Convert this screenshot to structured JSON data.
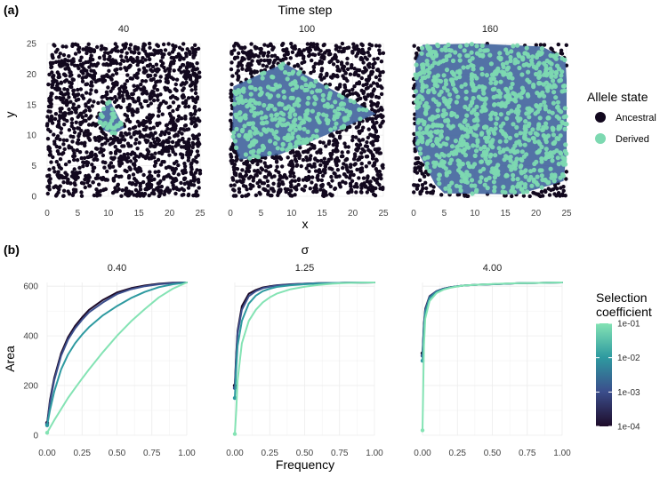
{
  "figure": {
    "panel_a_tag": "(a)",
    "panel_a_strip_title": "Time step",
    "panel_b_tag": "(b)",
    "panel_b_strip_title": "σ"
  },
  "chart_data": [
    {
      "type": "scatter",
      "panel": "(a)",
      "facet_title": "Time step",
      "facets": [
        "40",
        "100",
        "160"
      ],
      "xlabel": "x",
      "ylabel": "y",
      "xlim": [
        0,
        25
      ],
      "ylim": [
        0,
        25
      ],
      "xticks": [
        "0",
        "5",
        "10",
        "15",
        "20",
        "25"
      ],
      "yticks": [
        "0",
        "5",
        "10",
        "15",
        "20",
        "25"
      ],
      "legend": {
        "title": "Allele state",
        "entries": [
          {
            "label": "Ancestral",
            "color": "#12081e"
          },
          {
            "label": "Derived",
            "color": "#7dd9b1"
          }
        ],
        "placement": "right"
      },
      "hull_color": "#3b5f9a",
      "derived_hulls": [
        [
          [
            8.2,
            12.8
          ],
          [
            10.2,
            15.8
          ],
          [
            12.6,
            11.2
          ],
          [
            11.0,
            10.2
          ],
          [
            9.2,
            10.8
          ]
        ],
        [
          [
            0.5,
            18.0
          ],
          [
            8.8,
            21.8
          ],
          [
            23.8,
            13.5
          ],
          [
            8.0,
            6.8
          ],
          [
            1.5,
            6.0
          ],
          [
            0.3,
            9.5
          ]
        ],
        [
          [
            0.3,
            22.0
          ],
          [
            1.5,
            24.8
          ],
          [
            10.0,
            25.0
          ],
          [
            21.0,
            24.5
          ],
          [
            24.8,
            22.5
          ],
          [
            25.0,
            19.0
          ],
          [
            25.0,
            7.0
          ],
          [
            24.5,
            2.5
          ],
          [
            23.0,
            2.0
          ],
          [
            17.0,
            0.3
          ],
          [
            5.0,
            0.5
          ],
          [
            3.5,
            2.0
          ],
          [
            0.3,
            8.0
          ]
        ]
      ],
      "grid": true
    },
    {
      "type": "line",
      "panel": "(b)",
      "facet_title": "σ",
      "facets": [
        "0.40",
        "1.25",
        "4.00"
      ],
      "xlabel": "Frequency",
      "ylabel": "Area",
      "xlim": [
        0,
        1
      ],
      "ylim": [
        0,
        615
      ],
      "xticks": [
        "0.00",
        "0.25",
        "0.50",
        "0.75",
        "1.00"
      ],
      "yticks": [
        "0",
        "200",
        "400",
        "600"
      ],
      "legend": {
        "title": "Selection coefficient",
        "type": "colorbar",
        "labels": [
          "1e-01",
          "1e-02",
          "1e-03",
          "1e-04"
        ],
        "colors": [
          "#84e3b4",
          "#2e9aa0",
          "#3b4e8c",
          "#1e0c2a"
        ],
        "placement": "right"
      },
      "x": [
        0,
        0.01,
        0.02,
        0.05,
        0.1,
        0.15,
        0.2,
        0.25,
        0.3,
        0.4,
        0.5,
        0.6,
        0.7,
        0.8,
        0.9,
        1.0
      ],
      "panels": [
        {
          "facet": "0.40",
          "series": [
            {
              "s": "1e-04",
              "color": "#1e0c2a",
              "values": [
                50,
                95,
                140,
                230,
                330,
                395,
                440,
                475,
                505,
                545,
                575,
                592,
                603,
                610,
                614,
                615
              ]
            },
            {
              "s": "1e-03",
              "color": "#3b4e8c",
              "values": [
                45,
                88,
                130,
                220,
                320,
                385,
                430,
                465,
                495,
                535,
                568,
                588,
                600,
                608,
                613,
                615
              ]
            },
            {
              "s": "1e-02",
              "color": "#2e9aa0",
              "values": [
                40,
                70,
                100,
                175,
                265,
                325,
                370,
                405,
                435,
                483,
                520,
                552,
                577,
                596,
                608,
                615
              ]
            },
            {
              "s": "1e-01",
              "color": "#84e3b4",
              "values": [
                10,
                20,
                30,
                60,
                105,
                150,
                190,
                228,
                265,
                335,
                400,
                458,
                508,
                555,
                590,
                615
              ]
            }
          ]
        },
        {
          "facet": "1.25",
          "series": [
            {
              "s": "1e-04",
              "color": "#1e0c2a",
              "values": [
                200,
                330,
                420,
                520,
                570,
                585,
                595,
                600,
                604,
                608,
                610,
                612,
                613,
                614,
                614,
                615
              ]
            },
            {
              "s": "1e-03",
              "color": "#3b4e8c",
              "values": [
                190,
                320,
                410,
                505,
                560,
                580,
                592,
                598,
                603,
                607,
                610,
                612,
                613,
                614,
                614,
                615
              ]
            },
            {
              "s": "1e-02",
              "color": "#2e9aa0",
              "values": [
                150,
                270,
                360,
                460,
                530,
                562,
                580,
                590,
                597,
                604,
                608,
                611,
                613,
                614,
                615,
                615
              ]
            },
            {
              "s": "1e-01",
              "color": "#84e3b4",
              "values": [
                5,
                100,
                220,
                370,
                460,
                505,
                535,
                555,
                570,
                588,
                598,
                605,
                610,
                613,
                614,
                615
              ]
            }
          ]
        },
        {
          "facet": "4.00",
          "series": [
            {
              "s": "1e-04",
              "color": "#1e0c2a",
              "values": [
                330,
                450,
                510,
                560,
                580,
                590,
                596,
                600,
                603,
                606,
                608,
                610,
                612,
                613,
                614,
                615
              ]
            },
            {
              "s": "1e-03",
              "color": "#3b4e8c",
              "values": [
                320,
                445,
                505,
                558,
                580,
                590,
                596,
                600,
                603,
                606,
                608,
                610,
                612,
                613,
                614,
                615
              ]
            },
            {
              "s": "1e-02",
              "color": "#2e9aa0",
              "values": [
                300,
                430,
                495,
                552,
                577,
                588,
                595,
                600,
                603,
                606,
                608,
                610,
                612,
                613,
                614,
                615
              ]
            },
            {
              "s": "1e-01",
              "color": "#84e3b4",
              "values": [
                20,
                360,
                470,
                540,
                572,
                586,
                594,
                599,
                603,
                606,
                609,
                611,
                612,
                613,
                614,
                615
              ]
            }
          ]
        }
      ],
      "grid": true
    }
  ]
}
